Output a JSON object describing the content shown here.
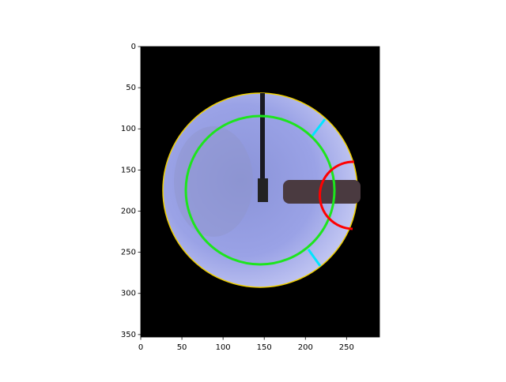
{
  "chart_data": {
    "type": "image",
    "xlim": [
      0,
      290
    ],
    "ylim": [
      353,
      0
    ],
    "xticks": [
      0,
      50,
      100,
      150,
      200,
      250
    ],
    "yticks": [
      0,
      50,
      100,
      150,
      200,
      250,
      300,
      350
    ]
  }
}
